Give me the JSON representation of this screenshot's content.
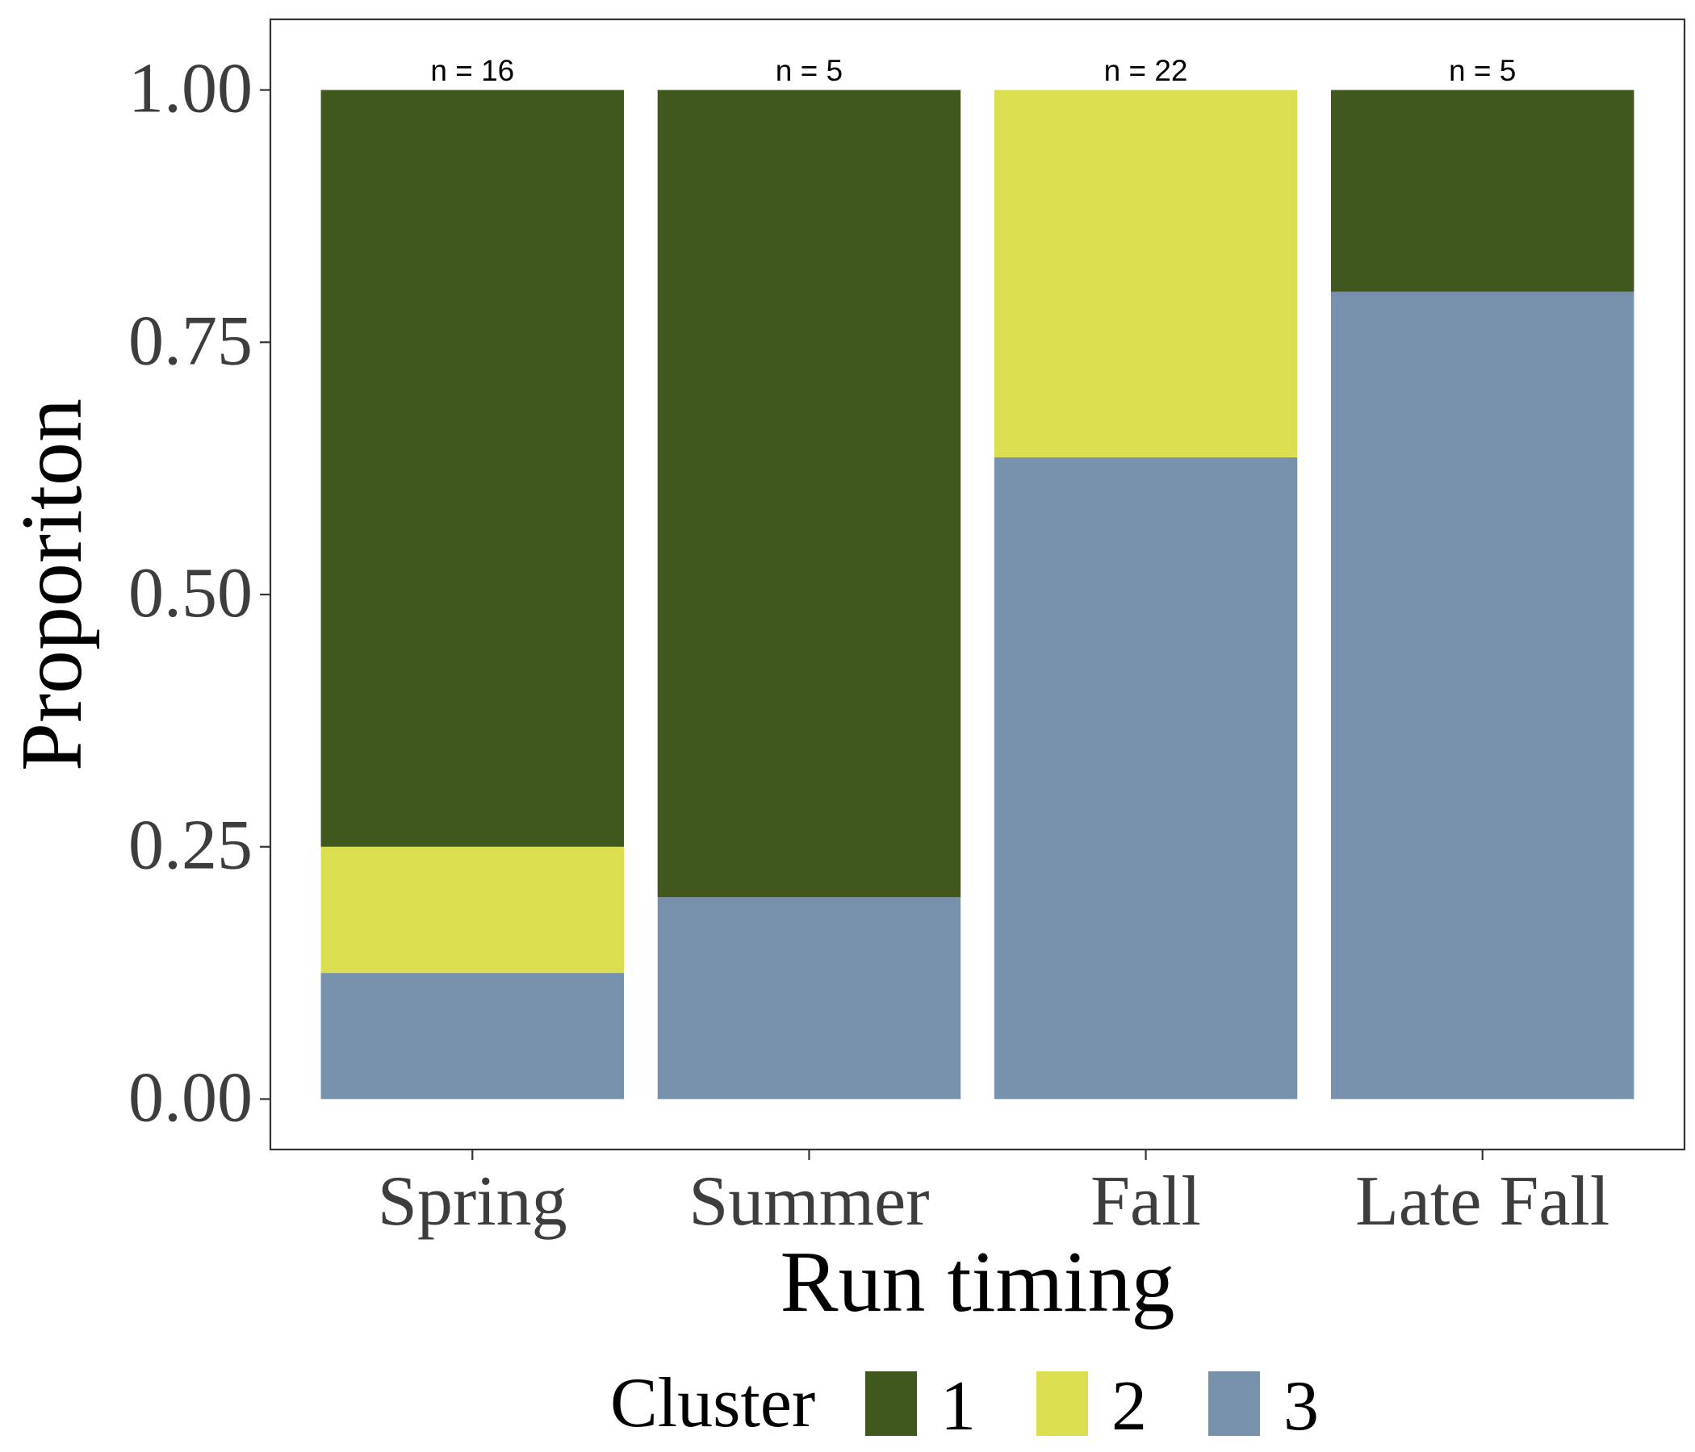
{
  "chart_data": {
    "type": "bar",
    "stacked": true,
    "categories": [
      "Spring",
      "Summer",
      "Fall",
      "Late Fall"
    ],
    "series": [
      {
        "name": "3",
        "color": "#7790ab",
        "values": [
          0.125,
          0.2,
          0.636,
          0.8
        ]
      },
      {
        "name": "2",
        "color": "#dbdf4f",
        "values": [
          0.125,
          0.0,
          0.364,
          0.0
        ]
      },
      {
        "name": "1",
        "color": "#40571e",
        "values": [
          0.75,
          0.8,
          0.0,
          0.2
        ]
      }
    ],
    "annotations": [
      "n = 16",
      "n = 5",
      "n = 22",
      "n = 5"
    ],
    "xlabel": "Run timing",
    "ylabel": "Proporiton",
    "ylim": [
      -0.05,
      1.07
    ],
    "yticks": [
      0.0,
      0.25,
      0.5,
      0.75,
      1.0
    ],
    "ytick_labels": [
      "0.00",
      "0.25",
      "0.50",
      "0.75",
      "1.00"
    ],
    "grid": false,
    "legend": {
      "title": "Cluster",
      "placement": "bottom",
      "entries": [
        "1",
        "2",
        "3"
      ]
    }
  }
}
